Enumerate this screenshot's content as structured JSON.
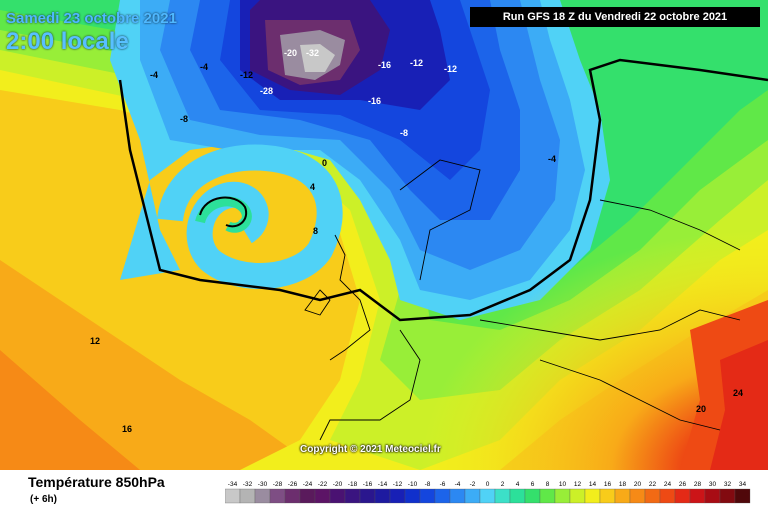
{
  "header": {
    "date_label": "Samedi 23 octobre 2021",
    "local_time": "2:00 locale",
    "run_info": "Run GFS 18 Z du Vendredi 22 octobre 2021"
  },
  "copyright": "Copyright © 2021 Meteociel.fr",
  "legend": {
    "title": "Température 850hPa",
    "subtitle": "(+ 6h)",
    "stops": [
      {
        "value": "-34",
        "color": "#c8c8c8"
      },
      {
        "value": "-32",
        "color": "#b4b4b4"
      },
      {
        "value": "-30",
        "color": "#9a8ca0"
      },
      {
        "value": "-28",
        "color": "#7e4e84"
      },
      {
        "value": "-26",
        "color": "#6c2e6e"
      },
      {
        "value": "-24",
        "color": "#5a1a5c"
      },
      {
        "value": "-22",
        "color": "#5c1466"
      },
      {
        "value": "-20",
        "color": "#4a1272"
      },
      {
        "value": "-18",
        "color": "#3a1480"
      },
      {
        "value": "-16",
        "color": "#2a168e"
      },
      {
        "value": "-14",
        "color": "#1e1aa0"
      },
      {
        "value": "-12",
        "color": "#1820b6"
      },
      {
        "value": "-10",
        "color": "#1030cc"
      },
      {
        "value": "-8",
        "color": "#1446de"
      },
      {
        "value": "-6",
        "color": "#1c64ea"
      },
      {
        "value": "-4",
        "color": "#2c88f2"
      },
      {
        "value": "-2",
        "color": "#3cacf6"
      },
      {
        "value": "0",
        "color": "#50d2f6"
      },
      {
        "value": "2",
        "color": "#3ce0c8"
      },
      {
        "value": "4",
        "color": "#2ce09a"
      },
      {
        "value": "6",
        "color": "#34e06c"
      },
      {
        "value": "8",
        "color": "#60e848"
      },
      {
        "value": "10",
        "color": "#98ee38"
      },
      {
        "value": "12",
        "color": "#ccf028"
      },
      {
        "value": "14",
        "color": "#f2ee1c"
      },
      {
        "value": "16",
        "color": "#f8cc1a"
      },
      {
        "value": "18",
        "color": "#f8aa18"
      },
      {
        "value": "20",
        "color": "#f68a16"
      },
      {
        "value": "22",
        "color": "#f26a14"
      },
      {
        "value": "24",
        "color": "#ee4a14"
      },
      {
        "value": "26",
        "color": "#e42a16"
      },
      {
        "value": "28",
        "color": "#cc1418"
      },
      {
        "value": "30",
        "color": "#a80c14"
      },
      {
        "value": "32",
        "color": "#820a10"
      },
      {
        "value": "34",
        "color": "#50080a"
      }
    ]
  },
  "map": {
    "isotherm_labels": [
      {
        "text": "-4",
        "x": -1,
        "y": -1
      },
      {
        "text": "-4",
        "x": -1,
        "y": -1
      },
      {
        "text": "-8",
        "x": -1,
        "y": -1
      },
      {
        "text": "-12",
        "x": -1,
        "y": -1
      },
      {
        "text": "-28",
        "x": -1,
        "y": -1
      },
      {
        "text": "-20",
        "x": -1,
        "y": -1
      },
      {
        "text": "-32",
        "x": -1,
        "y": -1
      },
      {
        "text": "-16",
        "x": -1,
        "y": -1
      },
      {
        "text": "-12",
        "x": -1,
        "y": -1
      },
      {
        "text": "-12",
        "x": -1,
        "y": -1
      },
      {
        "text": "-16",
        "x": -1,
        "y": -1
      },
      {
        "text": "-8",
        "x": -1,
        "y": -1
      },
      {
        "text": "0",
        "x": -1,
        "y": -1
      },
      {
        "text": "-4",
        "x": -1,
        "y": -1
      },
      {
        "text": "4",
        "x": -1,
        "y": -1
      },
      {
        "text": "8",
        "x": -1,
        "y": -1
      },
      {
        "text": "12",
        "x": -1,
        "y": -1
      },
      {
        "text": "16",
        "x": -1,
        "y": -1
      },
      {
        "text": "20",
        "x": -1,
        "y": -1
      },
      {
        "text": "24",
        "x": -1,
        "y": -1
      }
    ]
  }
}
